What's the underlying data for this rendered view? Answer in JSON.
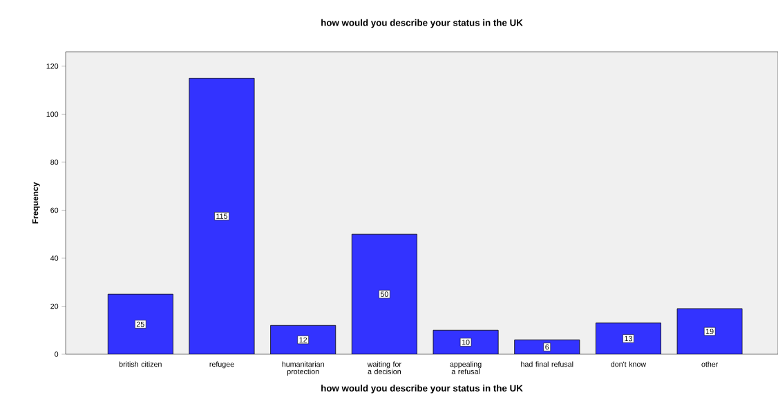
{
  "chart_data": {
    "type": "bar",
    "title": "how would you describe your status in the UK",
    "xlabel": "how would you describe your status in the UK",
    "ylabel": "Frequency",
    "categories": [
      "british citizen",
      "refugee",
      "humanitarian protection",
      "waiting for a decision",
      "appealing a refusal",
      "had final refusal",
      "don't know",
      "other"
    ],
    "values": [
      25,
      115,
      12,
      50,
      10,
      6,
      13,
      19
    ],
    "color": "#3333ff",
    "data_labels": true,
    "grid": false,
    "ylim": [
      0,
      126
    ],
    "yticks": [
      0,
      20,
      40,
      60,
      80,
      100,
      120
    ]
  }
}
